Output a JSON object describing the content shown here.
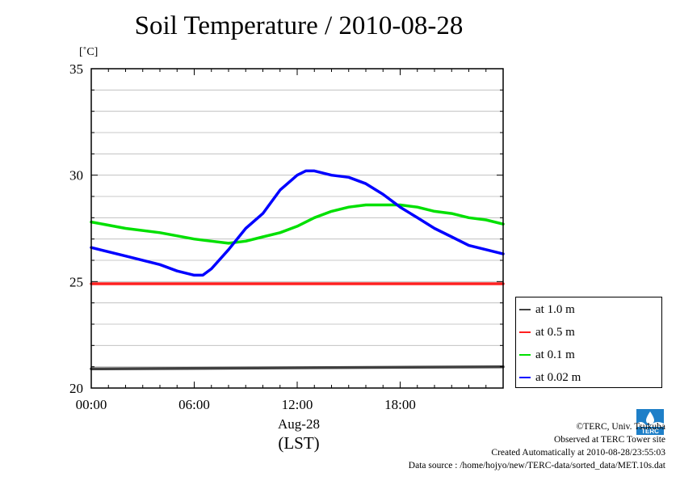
{
  "title": "Soil Temperature / 2010-08-28",
  "unit_label": "[˚C]",
  "date_label": "Aug-28",
  "timezone_label": "(LST)",
  "credits": {
    "copyright": "©TERC, Univ. Tsukuba",
    "observed": "Observed at TERC Tower site",
    "created": "Created Automatically at 2010-08-28/23:55:03",
    "source": "Data source : /home/hojyo/new/TERC-data/sorted_data/MET.10s.dat"
  },
  "logo_icon": "terc-logo-icon",
  "chart_data": {
    "type": "line",
    "title": "Soil Temperature / 2010-08-28",
    "ylabel": "[˚C]",
    "xlabel": "(LST)",
    "xlim": [
      0,
      24
    ],
    "ylim": [
      20,
      35
    ],
    "x_ticks": [
      0,
      6,
      12,
      18
    ],
    "x_tick_labels": [
      "00:00",
      "06:00",
      "12:00",
      "18:00"
    ],
    "y_ticks": [
      20,
      25,
      30,
      35
    ],
    "y_tick_labels": [
      "20",
      "25",
      "30",
      "35"
    ],
    "grid": true,
    "legend_position": "right",
    "series": [
      {
        "name": "at 1.0 m",
        "color": "#404040",
        "x": [
          0,
          24
        ],
        "y": [
          20.9,
          21.0
        ]
      },
      {
        "name": "at 0.5 m",
        "color": "#ff2020",
        "x": [
          0,
          24
        ],
        "y": [
          24.9,
          24.9
        ]
      },
      {
        "name": "at 0.1 m",
        "color": "#00e000",
        "x": [
          0,
          2,
          4,
          6,
          7,
          8,
          9,
          10,
          11,
          12,
          13,
          14,
          15,
          16,
          17,
          18,
          19,
          20,
          21,
          22,
          23,
          24
        ],
        "y": [
          27.8,
          27.5,
          27.3,
          27.0,
          26.9,
          26.8,
          26.9,
          27.1,
          27.3,
          27.6,
          28.0,
          28.3,
          28.5,
          28.6,
          28.6,
          28.6,
          28.5,
          28.3,
          28.2,
          28.0,
          27.9,
          27.7
        ]
      },
      {
        "name": "at 0.02 m",
        "color": "#0000ff",
        "x": [
          0,
          2,
          4,
          5,
          6,
          6.5,
          7,
          8,
          9,
          10,
          11,
          12,
          12.5,
          13,
          14,
          15,
          16,
          17,
          18,
          19,
          20,
          21,
          22,
          23,
          24
        ],
        "y": [
          26.6,
          26.2,
          25.8,
          25.5,
          25.3,
          25.3,
          25.6,
          26.5,
          27.5,
          28.2,
          29.3,
          30.0,
          30.2,
          30.2,
          30.0,
          29.9,
          29.6,
          29.1,
          28.5,
          28.0,
          27.5,
          27.1,
          26.7,
          26.5,
          26.3
        ]
      }
    ]
  }
}
